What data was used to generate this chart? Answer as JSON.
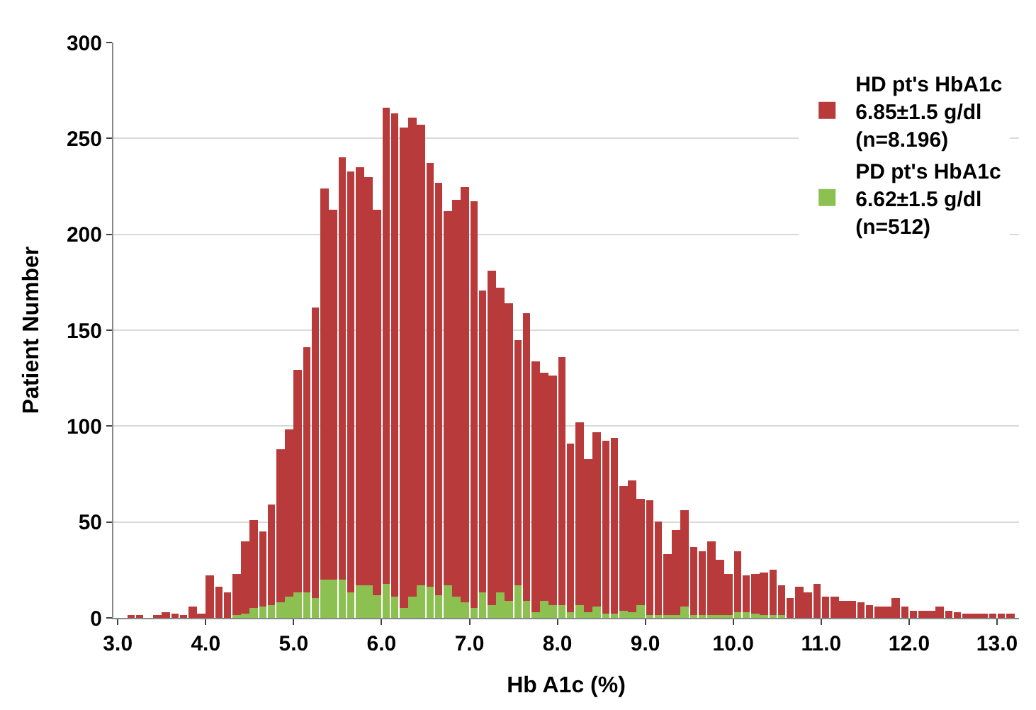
{
  "chart_data": {
    "type": "histogram",
    "xlabel": "Hb A1c (%)",
    "ylabel": "Patient Number",
    "bins": [
      3.0,
      3.1,
      3.2,
      3.3,
      3.4,
      3.5,
      3.6,
      3.7,
      3.8,
      3.9,
      4.0,
      4.1,
      4.2,
      4.3,
      4.4,
      4.5,
      4.6,
      4.7,
      4.8,
      4.9,
      5.0,
      5.1,
      5.2,
      5.3,
      5.4,
      5.5,
      5.6,
      5.7,
      5.8,
      5.9,
      6.0,
      6.1,
      6.2,
      6.3,
      6.4,
      6.5,
      6.6,
      6.7,
      6.8,
      6.9,
      7.0,
      7.1,
      7.2,
      7.3,
      7.4,
      7.5,
      7.6,
      7.7,
      7.8,
      7.9,
      8.0,
      8.1,
      8.2,
      8.3,
      8.4,
      8.5,
      8.6,
      8.7,
      8.8,
      8.9,
      9.0,
      9.1,
      9.2,
      9.3,
      9.4,
      9.5,
      9.6,
      9.7,
      9.8,
      9.9,
      10.0,
      10.1,
      10.2,
      10.3,
      10.4,
      10.5,
      10.6,
      10.7,
      10.8,
      10.9,
      11.0,
      11.1,
      11.2,
      11.3,
      11.4,
      11.5,
      11.6,
      11.7,
      11.8,
      11.9,
      12.0,
      12.1,
      12.2,
      12.3,
      12.4,
      12.5,
      12.6,
      12.7,
      12.8,
      12.9,
      13.0,
      13.1,
      13.2
    ],
    "series": [
      {
        "name": "HD pt's HbA1c\n6.85±1.5 g/dl\n(n=8.196)",
        "color": "#b83a3a",
        "values": [
          0,
          1,
          1,
          0,
          1,
          3,
          2,
          1,
          6,
          2,
          22,
          16,
          13,
          23,
          40,
          51,
          45,
          59,
          88,
          98,
          129,
          141,
          162,
          224,
          213,
          240,
          233,
          235,
          230,
          213,
          266,
          263,
          256,
          261,
          257,
          237,
          227,
          212,
          218,
          225,
          217,
          171,
          181,
          172,
          164,
          145,
          159,
          134,
          128,
          126,
          136,
          91,
          102,
          83,
          97,
          92,
          94,
          69,
          72,
          62,
          61,
          50,
          33,
          46,
          56,
          37,
          35,
          40,
          30,
          23,
          35,
          22,
          23,
          24,
          25,
          17,
          10,
          16,
          13,
          18,
          11,
          11,
          9,
          9,
          8,
          7,
          6,
          6,
          10,
          6,
          4,
          4,
          4,
          6,
          4,
          3,
          2,
          2,
          2,
          2,
          2,
          2
        ]
      },
      {
        "name": "PD pt's HbA1c\n6.62±1.5 g/dl\n(n=512)",
        "color": "#8cc152",
        "values": [
          0,
          0,
          0,
          0,
          0,
          0,
          0,
          0,
          0,
          0,
          0,
          0,
          0,
          1,
          2,
          5,
          6,
          7,
          8,
          11,
          13,
          13,
          10,
          20,
          20,
          20,
          13,
          17,
          17,
          12,
          18,
          11,
          5,
          11,
          17,
          16,
          12,
          17,
          11,
          8,
          5,
          13,
          7,
          13,
          9,
          17,
          9,
          3,
          9,
          7,
          7,
          3,
          7,
          3,
          6,
          2,
          2,
          4,
          3,
          7,
          1,
          1,
          1,
          1,
          6,
          1,
          1,
          1,
          1,
          1,
          3,
          3,
          2,
          1,
          1,
          1,
          0,
          0,
          0,
          0,
          0,
          0,
          0,
          0,
          0,
          0,
          0,
          0,
          0,
          0,
          0,
          0,
          0,
          0,
          0,
          0,
          0,
          0,
          0,
          0,
          0,
          0
        ]
      }
    ],
    "xlim": [
      2.95,
      13.25
    ],
    "xticks": [
      {
        "value": 3,
        "label": "3.0"
      },
      {
        "value": 4,
        "label": "4.0"
      },
      {
        "value": 5,
        "label": "5.0"
      },
      {
        "value": 6,
        "label": "6.0"
      },
      {
        "value": 7,
        "label": "7.0"
      },
      {
        "value": 8,
        "label": "8.0"
      },
      {
        "value": 9,
        "label": "9.0"
      },
      {
        "value": 10,
        "label": "10.0"
      },
      {
        "value": 11,
        "label": "11.0"
      },
      {
        "value": 12,
        "label": "12.0"
      },
      {
        "value": 13,
        "label": "13.0"
      }
    ],
    "ylim": [
      0,
      300
    ],
    "yticks": [
      0,
      50,
      100,
      150,
      200,
      250,
      300
    ],
    "grid": "y",
    "legend": "top right"
  }
}
